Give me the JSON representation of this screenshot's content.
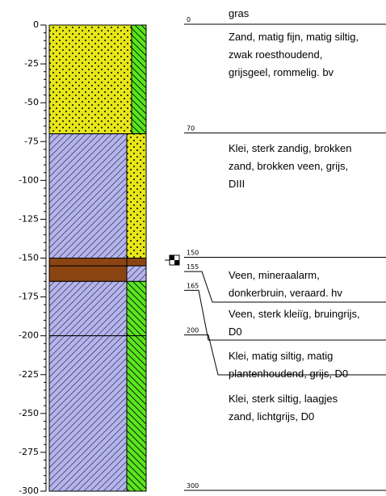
{
  "axis": {
    "lim": [
      0,
      -300
    ],
    "ticks": [
      0,
      -25,
      -50,
      -75,
      -100,
      -125,
      -150,
      -175,
      -200,
      -225,
      -250,
      -275,
      -300
    ]
  },
  "log": {
    "depths": [
      0,
      70,
      150,
      155,
      165,
      200,
      300
    ],
    "descriptions": [
      [
        "gras"
      ],
      [
        "Zand, matig fijn, matig siltig,",
        "zwak roesthoudend,",
        "grijsgeel, rommelig. bv"
      ],
      [
        "Klei, sterk zandig, brokken",
        "zand, brokken veen, grijs,",
        "DIII"
      ],
      [
        "Veen, mineraalarm,",
        "donkerbruin, veraard. hv"
      ],
      [
        "Veen, sterk kleiïg, bruingrijs,",
        "D0"
      ],
      [
        "Klei, matig siltig, matig",
        "plantenhoudend, grijs, D0"
      ],
      [
        "Klei, sterk siltig, laagjes",
        "zand, lichtgrijs, D0"
      ]
    ]
  }
}
